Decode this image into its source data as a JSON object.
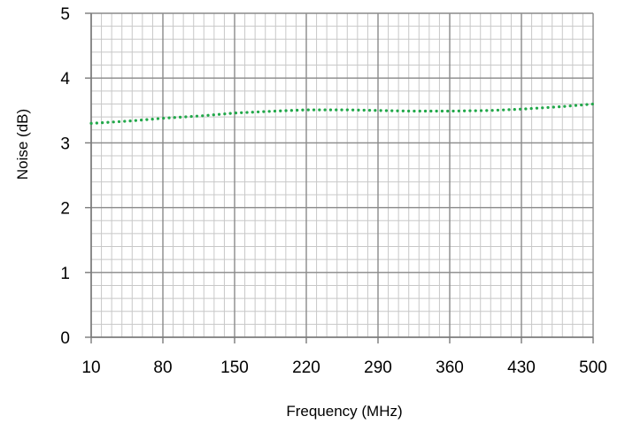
{
  "chart_data": {
    "type": "line",
    "title": "",
    "xlabel": "Frequency (MHz)",
    "ylabel": "Noise (dB)",
    "xlim": [
      10,
      500
    ],
    "ylim": [
      0,
      5
    ],
    "x_ticks": [
      10,
      80,
      150,
      220,
      290,
      360,
      430,
      500
    ],
    "y_ticks": [
      0,
      1,
      2,
      3,
      4,
      5
    ],
    "x_minor_step": 10,
    "y_minor_step": 0.2,
    "grid": true,
    "legend": "none",
    "series": [
      {
        "line_style": "dotted",
        "color": "#22a84a",
        "points": [
          [
            10,
            3.3
          ],
          [
            50,
            3.34
          ],
          [
            80,
            3.38
          ],
          [
            120,
            3.42
          ],
          [
            150,
            3.46
          ],
          [
            190,
            3.49
          ],
          [
            220,
            3.51
          ],
          [
            260,
            3.51
          ],
          [
            290,
            3.5
          ],
          [
            320,
            3.49
          ],
          [
            360,
            3.49
          ],
          [
            400,
            3.5
          ],
          [
            430,
            3.52
          ],
          [
            470,
            3.56
          ],
          [
            500,
            3.6
          ]
        ]
      }
    ]
  }
}
